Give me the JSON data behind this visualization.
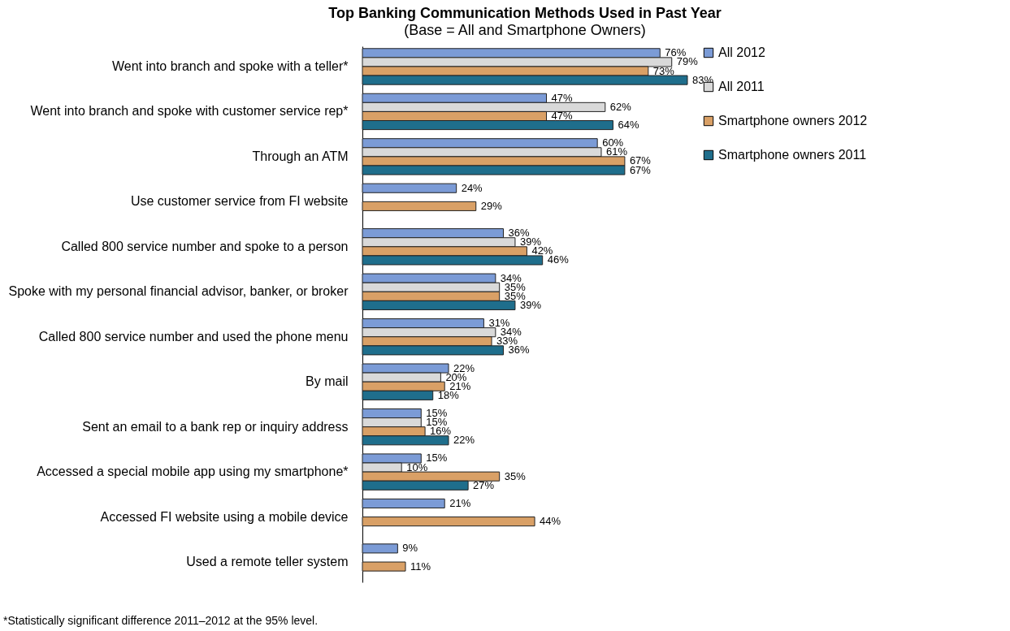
{
  "chart_data": {
    "type": "bar",
    "orientation": "horizontal",
    "title": "Top Banking Communication Methods Used in Past Year",
    "subtitle": "(Base =  All and Smartphone Owners)",
    "categories": [
      "Went into branch and spoke with a teller*",
      "Went into branch and spoke with customer service rep*",
      "Through an ATM",
      "Use customer service from FI website",
      "Called 800 service number and spoke to a person",
      "Spoke with my personal financial advisor, banker, or broker",
      "Called 800 service number and used the phone menu",
      "By mail",
      "Sent an email to a bank rep or inquiry address",
      "Accessed a special mobile app using my smartphone*",
      "Accessed FI website using a mobile device",
      "Used a remote teller system"
    ],
    "series": [
      {
        "name": "All 2012",
        "color": "#7b9bd6",
        "values": [
          76,
          47,
          60,
          24,
          36,
          34,
          31,
          22,
          15,
          15,
          21,
          9
        ],
        "value_labels": [
          "76%",
          "47%",
          "60%",
          "24%",
          "36%",
          "34%",
          "31%",
          "22%",
          "15%",
          "15%",
          "21%",
          "9%"
        ]
      },
      {
        "name": "All 2011",
        "color": "#d9d9d9",
        "values": [
          79,
          62,
          61,
          null,
          39,
          35,
          34,
          20,
          15,
          10,
          null,
          null
        ],
        "value_labels": [
          "79%",
          "62%",
          "61%",
          null,
          "39%",
          "35%",
          "34%",
          "20%",
          "15%",
          "10%",
          null,
          null
        ]
      },
      {
        "name": "Smartphone owners 2012",
        "color": "#d9a066",
        "values": [
          73,
          47,
          67,
          29,
          42,
          35,
          33,
          21,
          16,
          35,
          44,
          11
        ],
        "value_labels": [
          "73%",
          "47%",
          "67%",
          "29%",
          "42%",
          "35%",
          "33%",
          "21%",
          "16%",
          "35%",
          "44%",
          "11%"
        ]
      },
      {
        "name": "Smartphone owners 2011",
        "color": "#1f6e8c",
        "values": [
          83,
          64,
          67,
          null,
          46,
          39,
          36,
          18,
          22,
          27,
          null,
          null
        ],
        "value_labels": [
          "83%",
          "64%",
          "67%",
          null,
          "46%",
          "39%",
          "36%",
          "18%",
          "22%",
          "27%",
          null,
          null
        ]
      }
    ],
    "legend": "right",
    "annotations": [
      "*Statistically significant difference 2011–2012  at the 95% level."
    ]
  }
}
